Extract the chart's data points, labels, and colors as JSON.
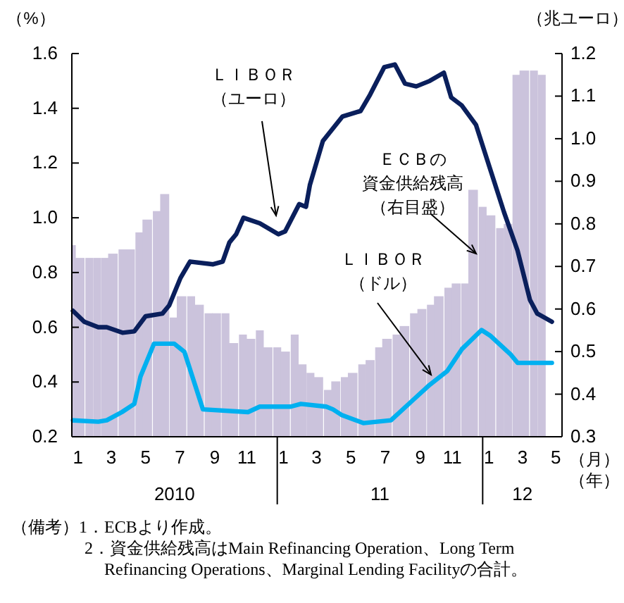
{
  "chart_data": {
    "type": "line",
    "ylabel": "（%）",
    "y2label": "（兆ユーロ）",
    "xlabel": "（月）（年）",
    "xlim": [
      "2010-01-01",
      "2012-05-21"
    ],
    "xticks": [
      {
        "value": "2010-01-12",
        "label": "1"
      },
      {
        "value": "2010-03-12",
        "label": "3"
      },
      {
        "value": "2010-05-12",
        "label": "5"
      },
      {
        "value": "2010-07-12",
        "label": "7"
      },
      {
        "value": "2010-09-12",
        "label": "9"
      },
      {
        "value": "2010-11-08",
        "label": "11"
      },
      {
        "value": "2011-01-12",
        "label": "1"
      },
      {
        "value": "2011-03-12",
        "label": "3"
      },
      {
        "value": "2011-05-12",
        "label": "5"
      },
      {
        "value": "2011-07-12",
        "label": "7"
      },
      {
        "value": "2011-09-12",
        "label": "9"
      },
      {
        "value": "2011-11-08",
        "label": "11"
      },
      {
        "value": "2012-01-12",
        "label": "1"
      },
      {
        "value": "2012-03-12",
        "label": "3"
      },
      {
        "value": "2012-05-10",
        "label": "5"
      }
    ],
    "ylim": [
      0.2,
      1.6
    ],
    "yticks": [
      0.2,
      0.4,
      0.6,
      0.8,
      {
        "value": 1.0,
        "label": "1.0"
      },
      1.2,
      1.4,
      1.6
    ],
    "y2lim": [
      0.3,
      1.2
    ],
    "y2ticks": [
      0.3,
      0.4,
      0.5,
      0.6,
      0.7,
      0.8,
      0.9,
      {
        "value": 1.0,
        "label": "1.0"
      },
      1.1,
      1.2
    ],
    "grid": false,
    "legend": false,
    "series": [
      {
        "name": "ＥＣＢの資金供給残高（右目盛）",
        "type": "bar",
        "axis": "y2",
        "color": "#cbc3dc",
        "x": [
          "2010-01-01",
          "2010-01-15",
          "2010-02-01",
          "2010-02-15",
          "2010-03-01",
          "2010-03-15",
          "2010-04-01",
          "2010-04-15",
          "2010-05-01",
          "2010-05-15",
          "2010-06-01",
          "2010-06-15",
          "2010-07-01",
          "2010-07-15",
          "2010-08-01",
          "2010-08-15",
          "2010-09-01",
          "2010-09-15",
          "2010-10-01",
          "2010-10-15",
          "2010-11-01",
          "2010-11-15",
          "2010-12-01",
          "2010-12-15",
          "2011-01-01",
          "2011-01-15",
          "2011-02-01",
          "2011-02-15",
          "2011-03-01",
          "2011-03-15",
          "2011-04-01",
          "2011-04-15",
          "2011-05-01",
          "2011-05-15",
          "2011-06-01",
          "2011-06-15",
          "2011-07-01",
          "2011-07-15",
          "2011-08-01",
          "2011-08-15",
          "2011-09-01",
          "2011-09-15",
          "2011-10-01",
          "2011-10-15",
          "2011-11-01",
          "2011-11-15",
          "2011-12-01",
          "2011-12-15",
          "2012-01-01",
          "2012-01-15",
          "2012-02-01",
          "2012-02-15",
          "2012-03-01",
          "2012-03-15",
          "2012-04-01",
          "2012-04-15"
        ],
        "values": [
          0.75,
          0.72,
          0.72,
          0.72,
          0.72,
          0.73,
          0.74,
          0.74,
          0.78,
          0.81,
          0.83,
          0.87,
          0.58,
          0.63,
          0.63,
          0.61,
          0.59,
          0.59,
          0.59,
          0.52,
          0.54,
          0.53,
          0.55,
          0.51,
          0.51,
          0.5,
          0.54,
          0.47,
          0.45,
          0.44,
          0.41,
          0.43,
          0.44,
          0.45,
          0.47,
          0.48,
          0.51,
          0.53,
          0.54,
          0.56,
          0.59,
          0.6,
          0.61,
          0.63,
          0.65,
          0.66,
          0.66,
          0.88,
          0.84,
          0.82,
          0.79,
          0.8,
          1.15,
          1.16,
          1.16,
          1.15
        ]
      },
      {
        "name": "ＬＩＢＯＲ（ユーロ）",
        "color": "#0a1f5c",
        "x": [
          "2010-01-03",
          "2010-01-23",
          "2010-02-17",
          "2010-03-04",
          "2010-04-01",
          "2010-04-22",
          "2010-05-12",
          "2010-06-11",
          "2010-06-23",
          "2010-07-13",
          "2010-07-30",
          "2010-09-09",
          "2010-09-26",
          "2010-10-08",
          "2010-10-20",
          "2010-11-02",
          "2010-12-01",
          "2011-01-03",
          "2011-01-15",
          "2011-02-09",
          "2011-02-21",
          "2011-02-28",
          "2011-03-23",
          "2011-04-27",
          "2011-05-29",
          "2011-06-15",
          "2011-07-10",
          "2011-07-29",
          "2011-08-16",
          "2011-09-05",
          "2011-09-29",
          "2011-10-24",
          "2011-11-06",
          "2011-11-25",
          "2011-12-20",
          "2012-01-14",
          "2012-02-08",
          "2012-03-03",
          "2012-03-25",
          "2012-04-07",
          "2012-05-03"
        ],
        "values": [
          0.66,
          0.62,
          0.6,
          0.6,
          0.58,
          0.585,
          0.64,
          0.65,
          0.68,
          0.78,
          0.84,
          0.83,
          0.84,
          0.91,
          0.94,
          1.0,
          0.98,
          0.94,
          0.95,
          1.05,
          1.04,
          1.12,
          1.28,
          1.37,
          1.39,
          1.45,
          1.55,
          1.56,
          1.49,
          1.48,
          1.5,
          1.53,
          1.44,
          1.41,
          1.34,
          1.18,
          1.02,
          0.88,
          0.7,
          0.65,
          0.62
        ]
      },
      {
        "name": "ＬＩＢＯＲ（ドル）",
        "color": "#00b0f0",
        "x": [
          "2010-01-03",
          "2010-02-17",
          "2010-03-04",
          "2010-03-31",
          "2010-04-22",
          "2010-05-03",
          "2010-05-27",
          "2010-07-02",
          "2010-07-20",
          "2010-08-22",
          "2010-11-10",
          "2010-12-01",
          "2011-01-25",
          "2011-02-12",
          "2011-03-29",
          "2011-04-10",
          "2011-04-25",
          "2011-06-03",
          "2011-07-22",
          "2011-08-28",
          "2011-09-29",
          "2011-10-30",
          "2011-11-25",
          "2011-12-30",
          "2012-01-14",
          "2012-02-20",
          "2012-03-03",
          "2012-04-07",
          "2012-05-03"
        ],
        "values": [
          0.26,
          0.255,
          0.26,
          0.29,
          0.32,
          0.42,
          0.54,
          0.54,
          0.51,
          0.3,
          0.29,
          0.31,
          0.31,
          0.32,
          0.31,
          0.3,
          0.28,
          0.25,
          0.26,
          0.33,
          0.39,
          0.44,
          0.52,
          0.59,
          0.57,
          0.5,
          0.47,
          0.47,
          0.47
        ]
      }
    ],
    "annotations": [
      "2010",
      "11",
      "12",
      "（備考）1．ECBより作成。",
      "2．資金供給残高はMain Refinancing Operation、Long Term Refinancing Operations、Marginal Lending Facilityの合計。"
    ]
  }
}
